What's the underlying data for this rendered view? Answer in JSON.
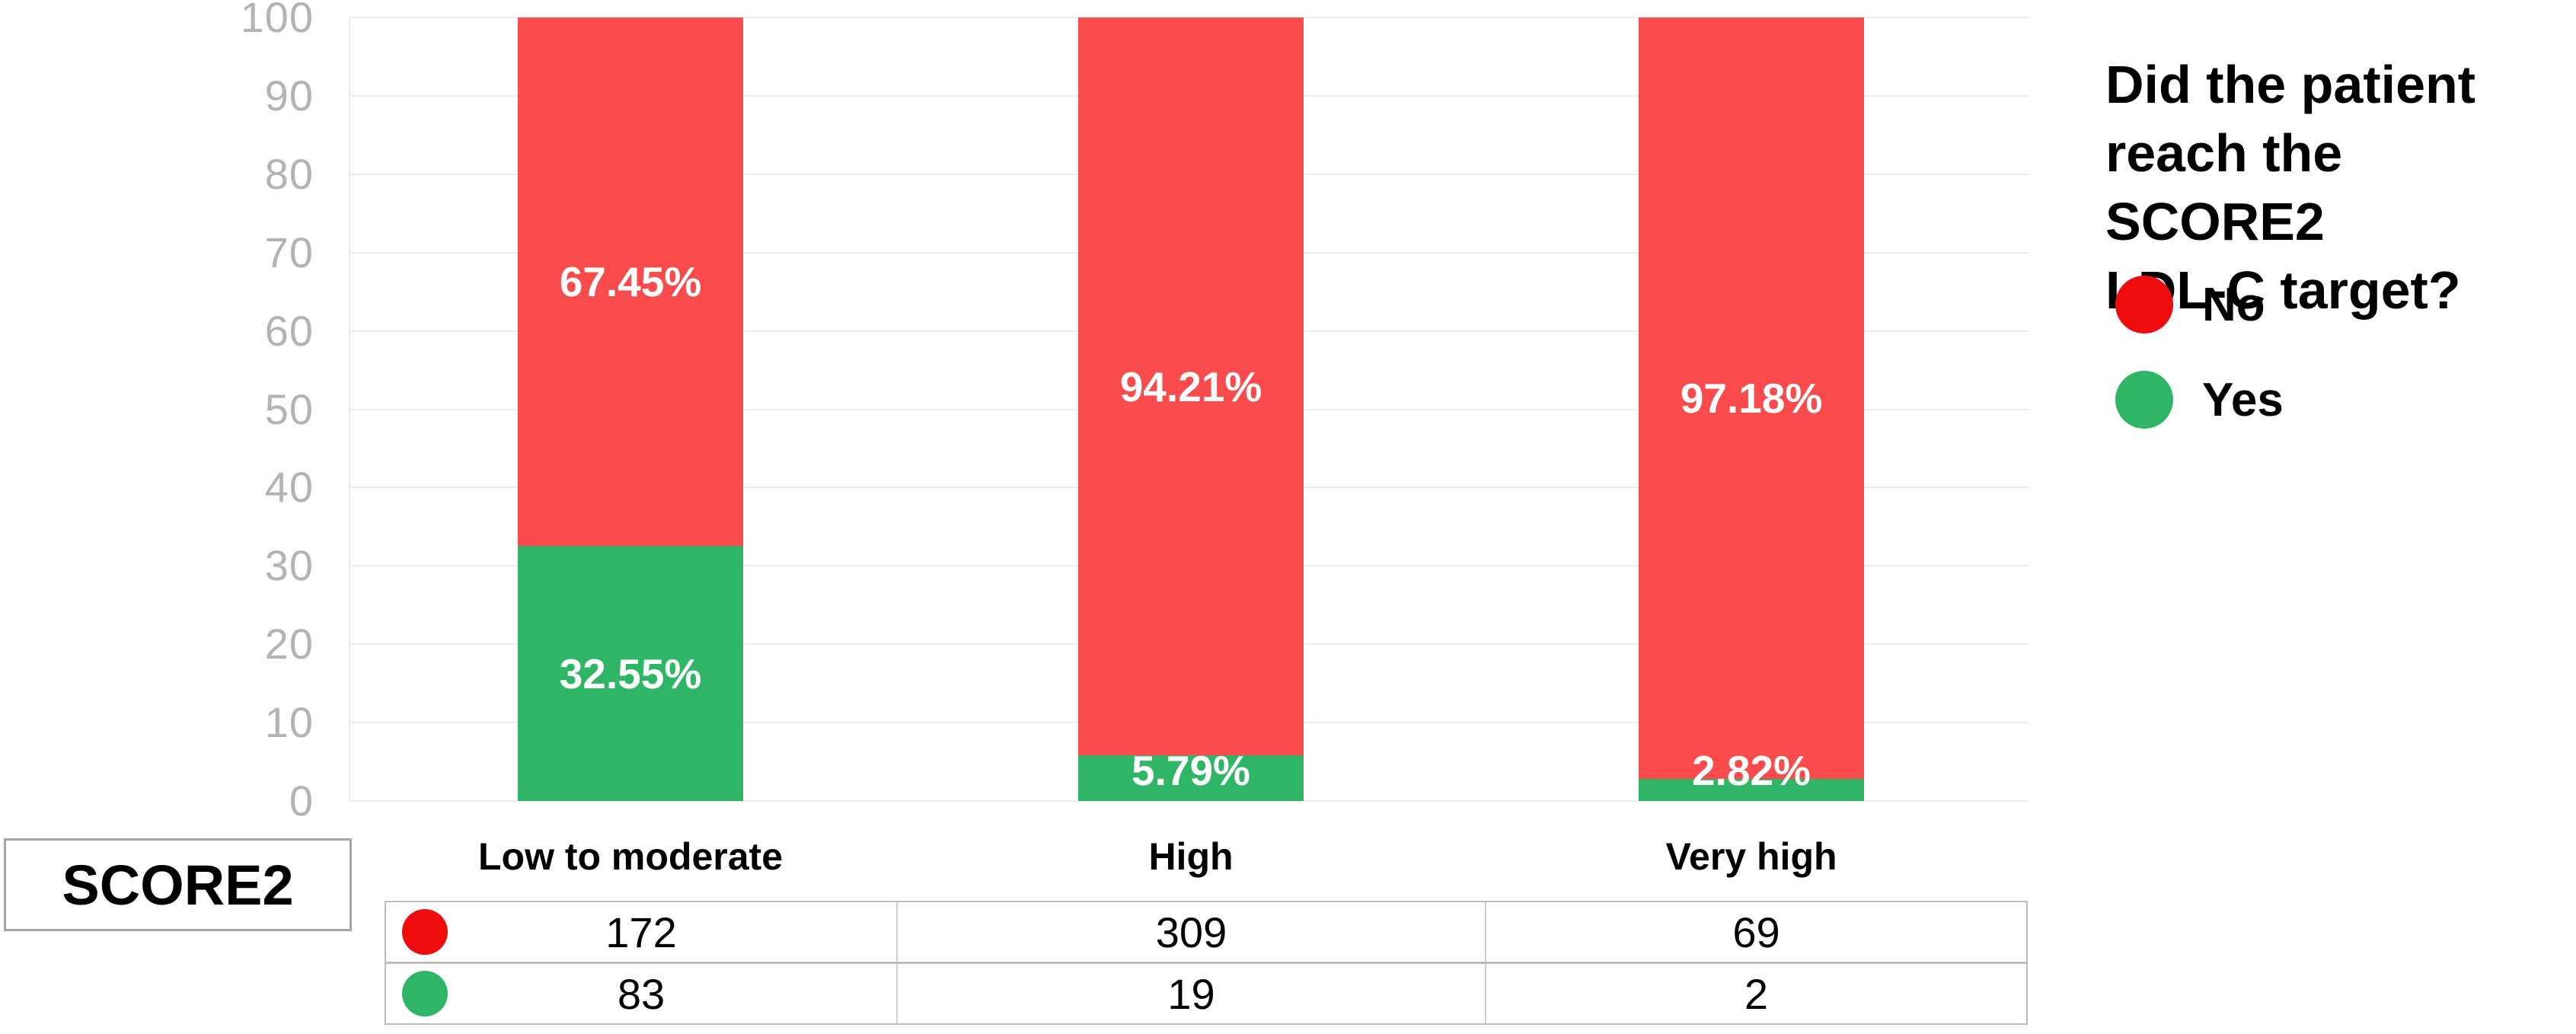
{
  "chart_data": {
    "type": "bar",
    "stacked": true,
    "percent_scale": true,
    "title": "",
    "legend_title": "Did the patient\nreach the SCORE2\nLDL-C target?",
    "legend_position": "right",
    "row_header": "SCORE2",
    "categories": [
      "Low to moderate",
      "High",
      "Very high"
    ],
    "series": [
      {
        "name": "No",
        "bar_color": "#f94b4b",
        "dot_color": "#ee0c0c",
        "values": [
          67.45,
          94.21,
          97.18
        ],
        "labels": [
          "67.45%",
          "94.21%",
          "97.18%"
        ],
        "counts": [
          "172",
          "309",
          "69"
        ]
      },
      {
        "name": "Yes",
        "bar_color": "#2fb566",
        "dot_color": "#2fb566",
        "values": [
          32.55,
          5.79,
          2.82
        ],
        "labels": [
          "32.55%",
          "5.79%",
          "2.82%"
        ],
        "counts": [
          "83",
          "19",
          "2"
        ]
      }
    ],
    "y_axis": {
      "min": 0,
      "max": 100,
      "ticks": [
        0,
        10,
        20,
        30,
        40,
        50,
        60,
        70,
        80,
        90,
        100
      ]
    },
    "grid": true,
    "ylim": [
      0,
      100
    ]
  },
  "colors": {
    "tick_label": "#b3b3b3",
    "gridline": "#ededed",
    "bar_value_label": "#ffffff",
    "table_border": "#bdbdbd",
    "row_header_border": "#a6a6a6",
    "background": "#ffffff"
  }
}
